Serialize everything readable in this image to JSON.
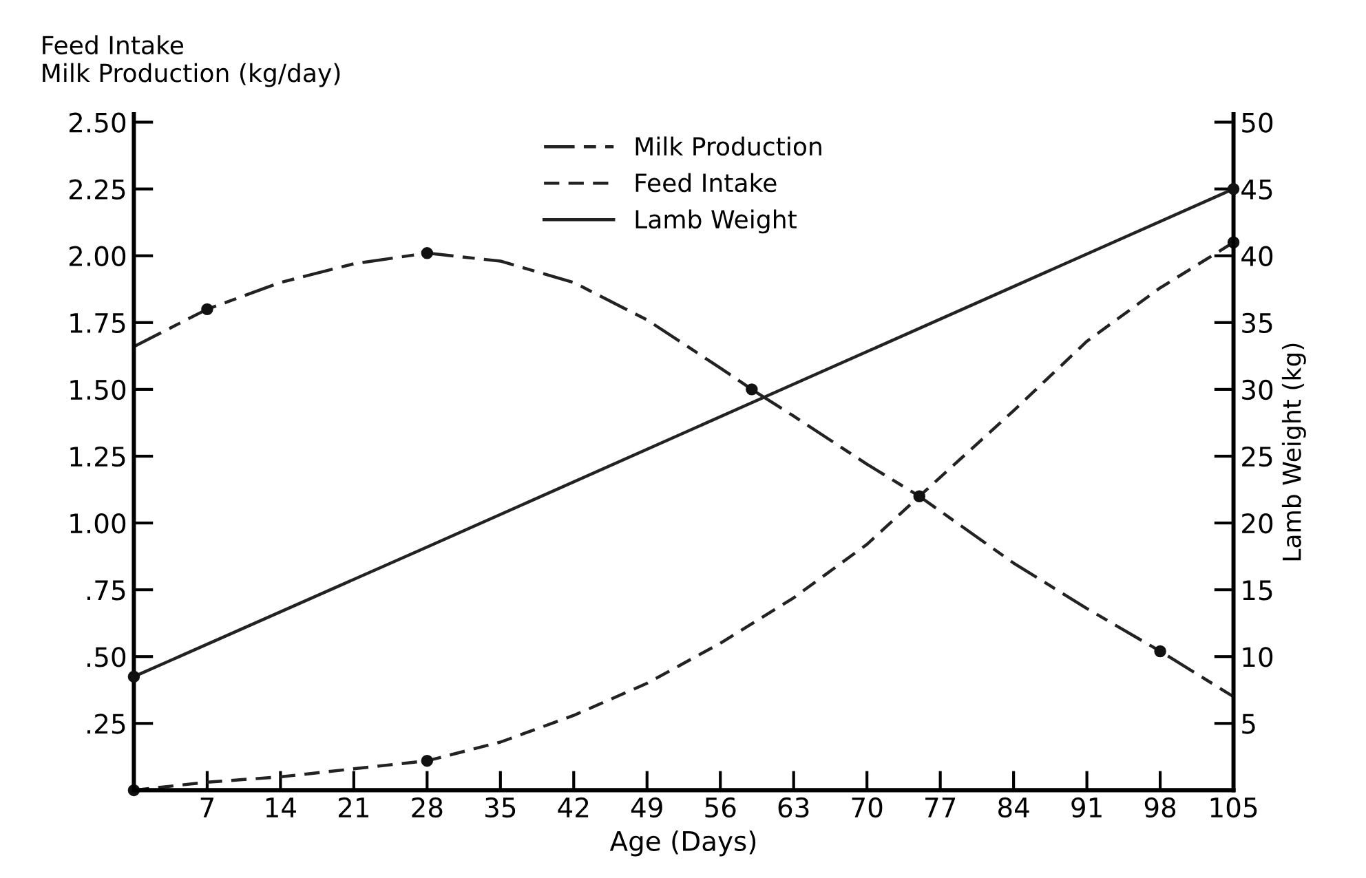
{
  "chart_data": {
    "type": "line",
    "xlabel": "Age (Days)",
    "ylabel": "Feed Intake\nMilk Production (kg/day)",
    "y2label": "Lamb Weight (kg)",
    "xlim": [
      0,
      105
    ],
    "xticks": [
      7,
      14,
      21,
      28,
      35,
      42,
      49,
      56,
      63,
      70,
      77,
      84,
      91,
      98,
      105
    ],
    "ylim": [
      0,
      2.53
    ],
    "yticks": [
      {
        "value": 0.25,
        "label": ".25"
      },
      {
        "value": 0.5,
        "label": ".50"
      },
      {
        "value": 0.75,
        "label": ".75"
      },
      {
        "value": 1.0,
        "label": "1.00"
      },
      {
        "value": 1.25,
        "label": "1.25"
      },
      {
        "value": 1.5,
        "label": "1.50"
      },
      {
        "value": 1.75,
        "label": "1.75"
      },
      {
        "value": 2.0,
        "label": "2.00"
      },
      {
        "value": 2.25,
        "label": "2.25"
      },
      {
        "value": 2.5,
        "label": "2.50"
      }
    ],
    "y2lim": [
      0,
      50.6
    ],
    "y2ticks": [
      5,
      10,
      15,
      20,
      25,
      30,
      35,
      40,
      45,
      50
    ],
    "legend": "top",
    "grid": false,
    "marker": "none",
    "series": [
      {
        "name": "Milk Production",
        "color": "#222222",
        "line_style": "dashdot",
        "x": [
          0,
          7,
          14,
          21,
          28,
          35,
          42,
          49,
          56,
          59,
          63,
          70,
          75,
          84,
          91,
          98,
          105
        ],
        "values": [
          1.66,
          1.8,
          1.9,
          1.97,
          2.01,
          1.98,
          1.9,
          1.76,
          1.58,
          1.5,
          1.4,
          1.22,
          1.1,
          0.85,
          0.68,
          0.52,
          0.35
        ]
      },
      {
        "name": "Feed Intake",
        "color": "#222222",
        "line_style": "dashed",
        "x": [
          0,
          7,
          14,
          21,
          28,
          35,
          42,
          49,
          56,
          63,
          70,
          75,
          84,
          91,
          98,
          105
        ],
        "values": [
          0,
          0.03,
          0.05,
          0.08,
          0.11,
          0.18,
          0.28,
          0.4,
          0.55,
          0.72,
          0.92,
          1.1,
          1.42,
          1.68,
          1.88,
          2.05
        ]
      },
      {
        "name": "Lamb Weight",
        "color": "#222222",
        "line_style": "solid",
        "axis": "y2",
        "x": [
          0,
          28,
          59,
          105
        ],
        "values": [
          8.5,
          18.2,
          29,
          45
        ]
      },
      {
        "type": "scatter",
        "color": "#111111",
        "marker": "circle",
        "x": [
          0,
          7,
          28,
          28,
          59,
          75,
          98,
          105
        ],
        "values": [
          0,
          1.8,
          2.01,
          0.11,
          1.5,
          1.1,
          0.52,
          2.05
        ]
      },
      {
        "type": "scatter",
        "color": "#111111",
        "marker": "circle",
        "axis": "y2",
        "x": [
          0,
          105
        ],
        "values": [
          8.5,
          45
        ]
      }
    ]
  }
}
